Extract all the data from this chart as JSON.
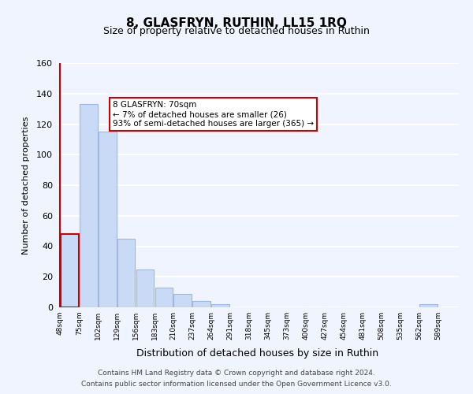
{
  "title": "8, GLASFRYN, RUTHIN, LL15 1RQ",
  "subtitle": "Size of property relative to detached houses in Ruthin",
  "xlabel": "Distribution of detached houses by size in Ruthin",
  "ylabel": "Number of detached properties",
  "bar_color": "#c8daf5",
  "bar_edge_color": "#a0b8e0",
  "highlight_bar_edge_color": "#cc0000",
  "bins": [
    48,
    75,
    102,
    129,
    156,
    183,
    210,
    237,
    264,
    291,
    318,
    345,
    373,
    400,
    427,
    454,
    481,
    508,
    535,
    562,
    589
  ],
  "counts": [
    48,
    133,
    115,
    45,
    25,
    13,
    9,
    4,
    2,
    0,
    0,
    0,
    0,
    0,
    0,
    0,
    0,
    0,
    0,
    2
  ],
  "highlight_bin_index": 0,
  "annotation_title": "8 GLASFRYN: 70sqm",
  "annotation_line1": "← 7% of detached houses are smaller (26)",
  "annotation_line2": "93% of semi-detached houses are larger (365) →",
  "annotation_box_color": "#ffffff",
  "annotation_box_edge_color": "#cc0000",
  "ylim": [
    0,
    160
  ],
  "yticks": [
    0,
    20,
    40,
    60,
    80,
    100,
    120,
    140,
    160
  ],
  "footer_line1": "Contains HM Land Registry data © Crown copyright and database right 2024.",
  "footer_line2": "Contains public sector information licensed under the Open Government Licence v3.0.",
  "background_color": "#f0f4ff",
  "grid_color": "#ffffff",
  "tick_labels": [
    "48sqm",
    "75sqm",
    "102sqm",
    "129sqm",
    "156sqm",
    "183sqm",
    "210sqm",
    "237sqm",
    "264sqm",
    "291sqm",
    "318sqm",
    "345sqm",
    "373sqm",
    "400sqm",
    "427sqm",
    "454sqm",
    "481sqm",
    "508sqm",
    "535sqm",
    "562sqm",
    "589sqm"
  ]
}
